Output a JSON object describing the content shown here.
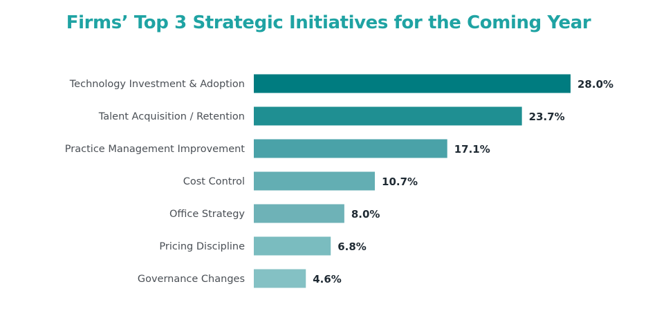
{
  "chart_data": {
    "type": "bar",
    "orientation": "horizontal",
    "title": "Firms’ Top 3 Strategic Initiatives for the Coming Year",
    "categories": [
      "Technology Investment & Adoption",
      "Talent Acquisition / Retention",
      "Practice Management Improvement",
      "Cost Control",
      "Office Strategy",
      "Pricing Discipline",
      "Governance Changes"
    ],
    "values": [
      28.0,
      23.7,
      17.1,
      10.7,
      8.0,
      6.8,
      4.6
    ],
    "value_labels": [
      "28.0%",
      "23.7%",
      "17.1%",
      "10.7%",
      "8.0%",
      "6.8%",
      "4.6%"
    ],
    "bar_colors": [
      "#007c80",
      "#1f8f92",
      "#4aa2a8",
      "#63aeb3",
      "#6eb2b7",
      "#7abcbf",
      "#84c1c4"
    ],
    "xlim": [
      0,
      28
    ],
    "grid": false,
    "legend": "none",
    "xlabel": "",
    "ylabel": ""
  }
}
